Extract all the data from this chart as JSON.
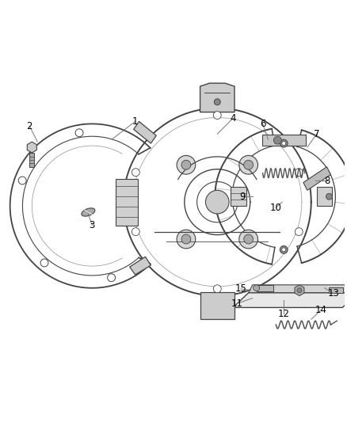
{
  "background_color": "#ffffff",
  "line_color": "#444444",
  "light_gray": "#bbbbbb",
  "med_gray": "#888888",
  "dark_gray": "#555555",
  "text_color": "#000000",
  "callout_color": "#777777",
  "figsize": [
    4.38,
    5.33
  ],
  "dpi": 100
}
